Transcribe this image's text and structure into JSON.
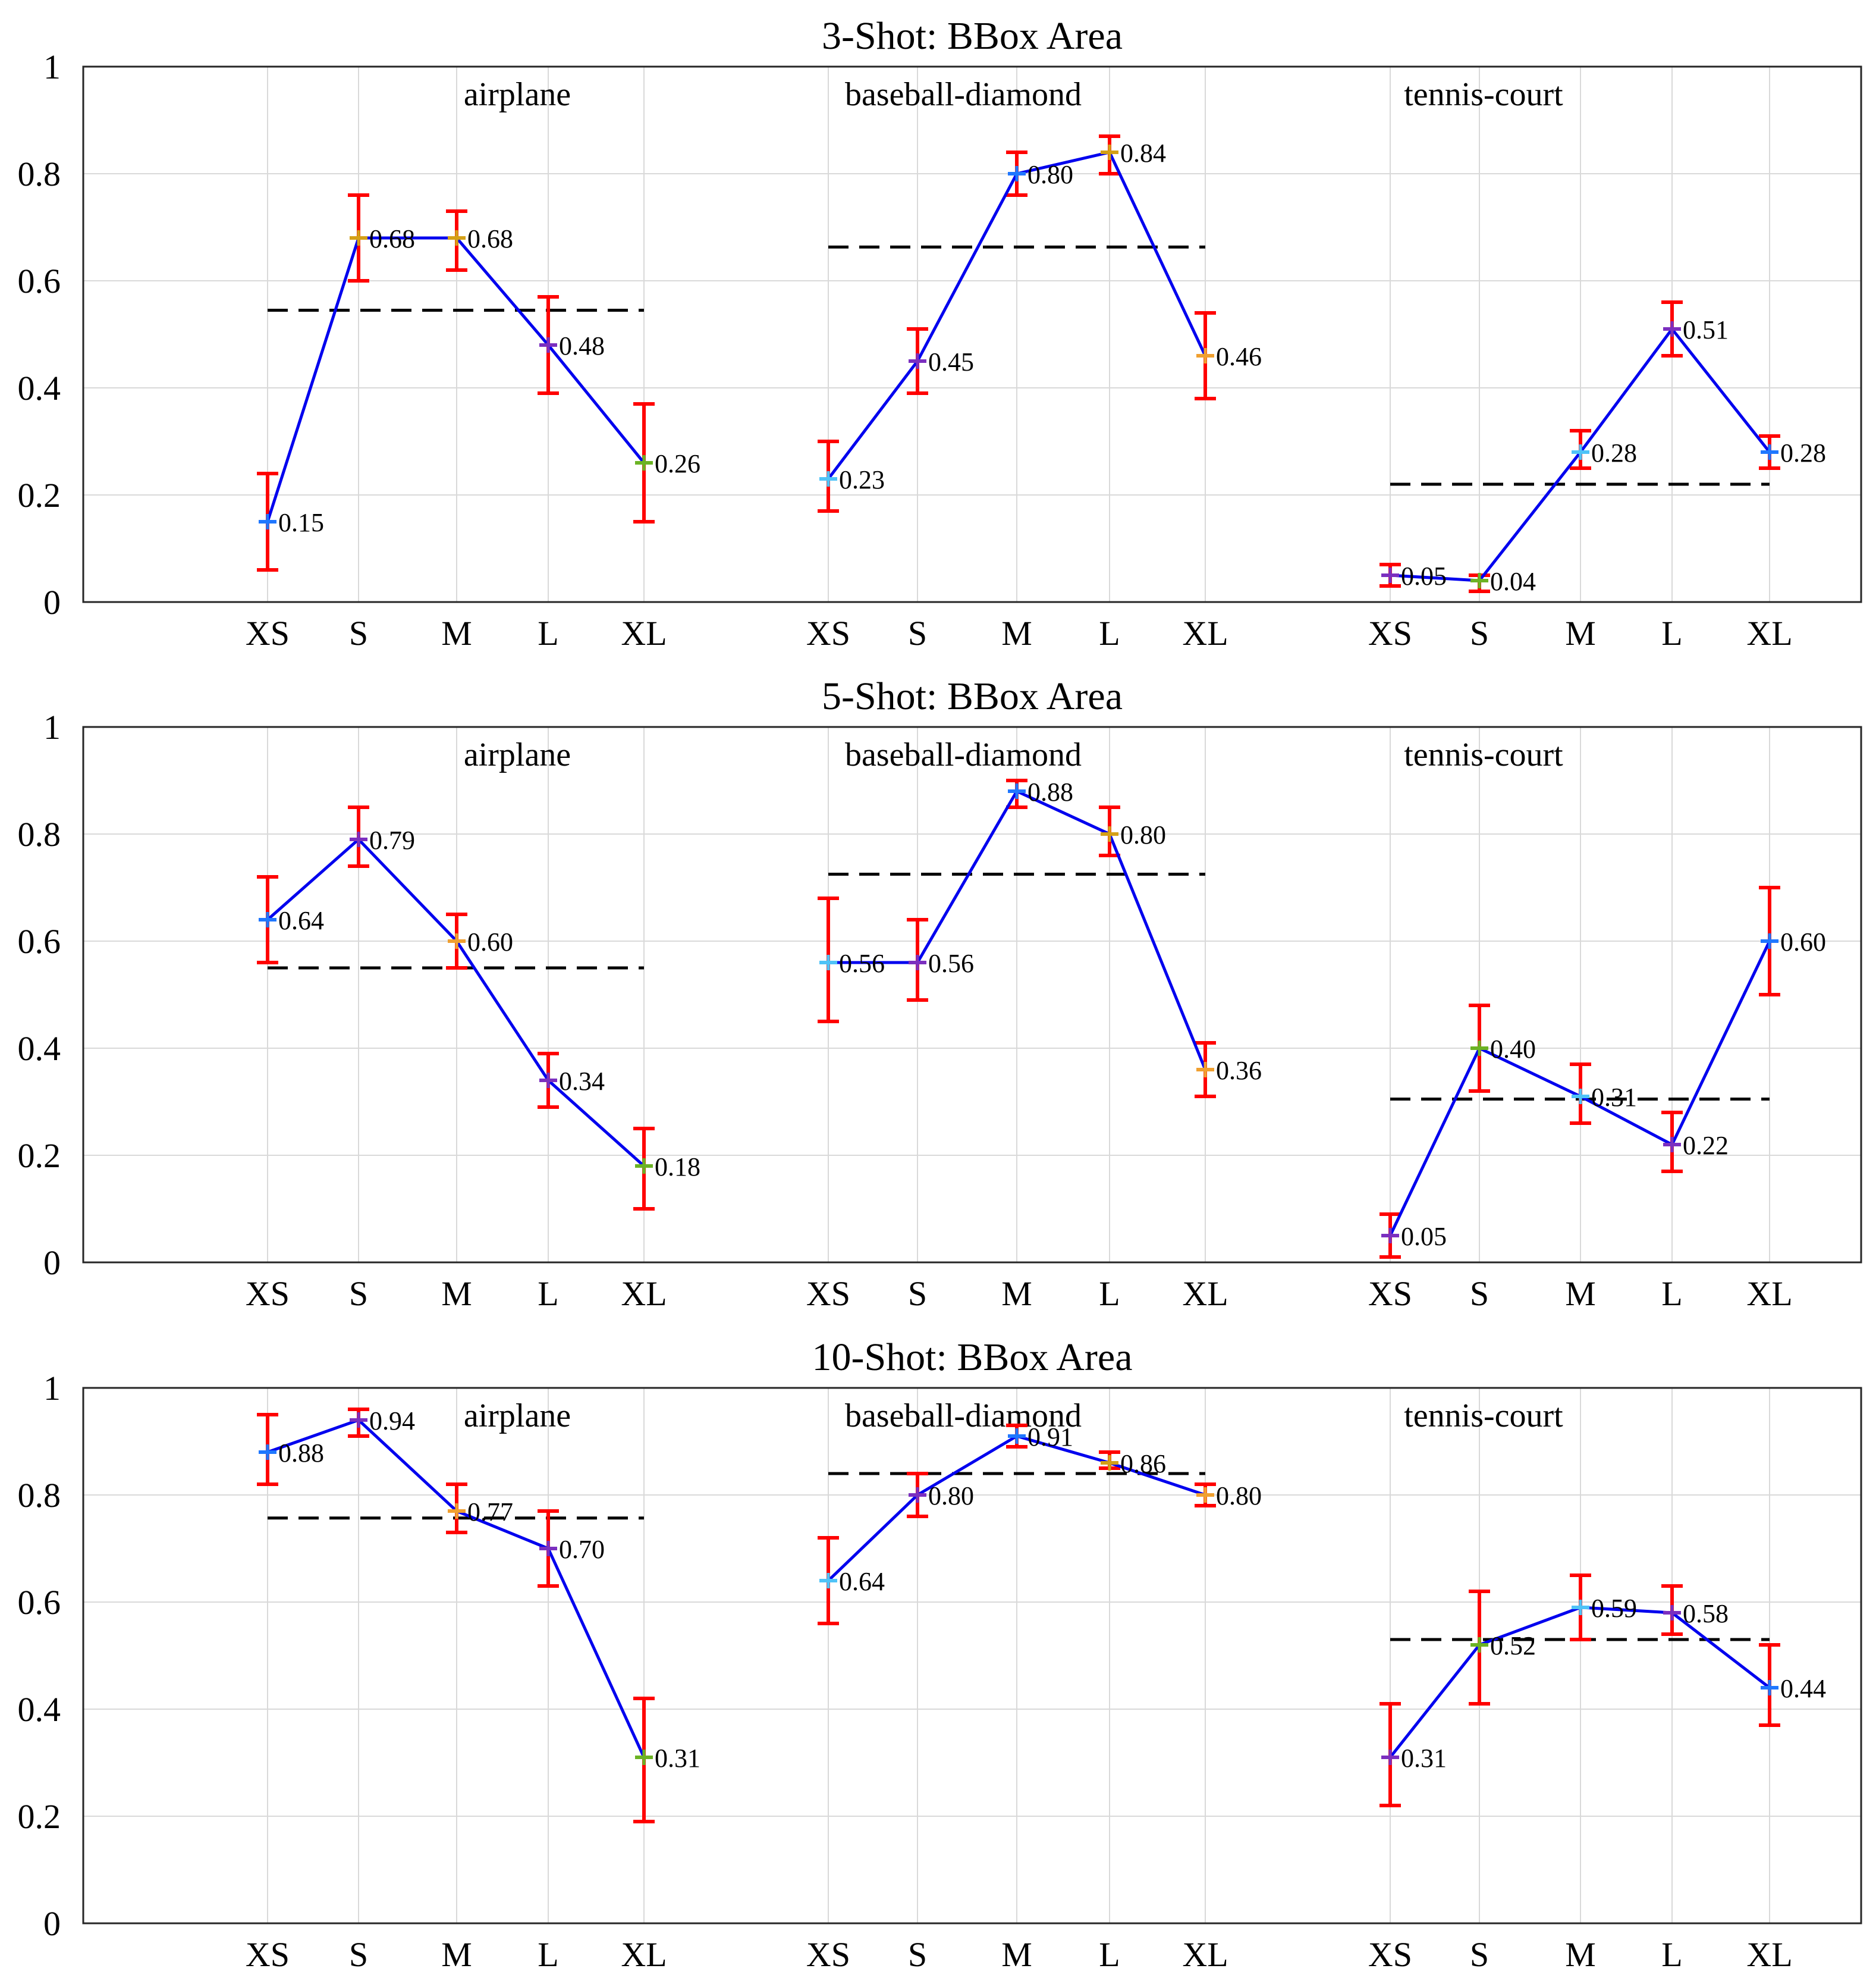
{
  "chart_data": [
    {
      "type": "line",
      "title": "3-Shot: BBox Area",
      "ylim": [
        0,
        1
      ],
      "yticks": [
        "0",
        "0.2",
        "0.4",
        "0.6",
        "0.8",
        "1"
      ],
      "categories": [
        "XS",
        "S",
        "M",
        "L",
        "XL"
      ],
      "groups": [
        {
          "name": "airplane",
          "values": [
            0.15,
            0.68,
            0.68,
            0.48,
            0.26
          ],
          "labels": [
            "0.15",
            "0.68",
            "0.68",
            "0.48",
            "0.26"
          ],
          "err_low": [
            0.06,
            0.6,
            0.62,
            0.39,
            0.15
          ],
          "err_high": [
            0.24,
            0.76,
            0.73,
            0.57,
            0.37
          ],
          "mean": 0.545,
          "marker_colors": [
            "#1f77ff",
            "#d4a017",
            "#d4a017",
            "#7b2fbf",
            "#6bb324"
          ]
        },
        {
          "name": "baseball-diamond",
          "values": [
            0.23,
            0.45,
            0.8,
            0.84,
            0.46
          ],
          "labels": [
            "0.23",
            "0.45",
            "0.80",
            "0.84",
            "0.46"
          ],
          "err_low": [
            0.17,
            0.39,
            0.76,
            0.8,
            0.38
          ],
          "err_high": [
            0.3,
            0.51,
            0.84,
            0.87,
            0.54
          ],
          "mean": 0.663,
          "marker_colors": [
            "#4fc3f7",
            "#7b2fbf",
            "#1f77ff",
            "#d4a017",
            "#f0a030"
          ]
        },
        {
          "name": "tennis-court",
          "values": [
            0.05,
            0.04,
            0.28,
            0.51,
            0.28
          ],
          "labels": [
            "0.05",
            "0.04",
            "0.28",
            "0.51",
            "0.28"
          ],
          "err_low": [
            0.03,
            0.02,
            0.25,
            0.46,
            0.25
          ],
          "err_high": [
            0.07,
            0.05,
            0.32,
            0.56,
            0.31
          ],
          "mean": 0.22,
          "marker_colors": [
            "#7b2fbf",
            "#6bb324",
            "#4fc3f7",
            "#7b2fbf",
            "#1f77ff"
          ]
        }
      ]
    },
    {
      "type": "line",
      "title": "5-Shot: BBox Area",
      "ylim": [
        0,
        1
      ],
      "yticks": [
        "0",
        "0.2",
        "0.4",
        "0.6",
        "0.8",
        "1"
      ],
      "categories": [
        "XS",
        "S",
        "M",
        "L",
        "XL"
      ],
      "groups": [
        {
          "name": "airplane",
          "values": [
            0.64,
            0.79,
            0.6,
            0.34,
            0.18
          ],
          "labels": [
            "0.64",
            "0.79",
            "0.60",
            "0.34",
            "0.18"
          ],
          "err_low": [
            0.56,
            0.74,
            0.55,
            0.29,
            0.1
          ],
          "err_high": [
            0.72,
            0.85,
            0.65,
            0.39,
            0.25
          ],
          "mean": 0.55,
          "marker_colors": [
            "#1f77ff",
            "#7b2fbf",
            "#f0a030",
            "#7b2fbf",
            "#6bb324"
          ]
        },
        {
          "name": "baseball-diamond",
          "values": [
            0.56,
            0.56,
            0.88,
            0.8,
            0.36
          ],
          "labels": [
            "0.56",
            "0.56",
            "0.88",
            "0.80",
            "0.36"
          ],
          "err_low": [
            0.45,
            0.49,
            0.85,
            0.76,
            0.31
          ],
          "err_high": [
            0.68,
            0.64,
            0.9,
            0.85,
            0.41
          ],
          "mean": 0.725,
          "marker_colors": [
            "#4fc3f7",
            "#7b2fbf",
            "#1f77ff",
            "#d4a017",
            "#f0a030"
          ]
        },
        {
          "name": "tennis-court",
          "values": [
            0.05,
            0.4,
            0.31,
            0.22,
            0.6
          ],
          "labels": [
            "0.05",
            "0.40",
            "0.31",
            "0.22",
            "0.60"
          ],
          "err_low": [
            0.01,
            0.32,
            0.26,
            0.17,
            0.5
          ],
          "err_high": [
            0.09,
            0.48,
            0.37,
            0.28,
            0.7
          ],
          "mean": 0.305,
          "marker_colors": [
            "#7b2fbf",
            "#6bb324",
            "#4fc3f7",
            "#7b2fbf",
            "#1f77ff"
          ]
        }
      ]
    },
    {
      "type": "line",
      "title": "10-Shot: BBox Area",
      "ylim": [
        0,
        1
      ],
      "yticks": [
        "0",
        "0.2",
        "0.4",
        "0.6",
        "0.8",
        "1"
      ],
      "categories": [
        "XS",
        "S",
        "M",
        "L",
        "XL"
      ],
      "groups": [
        {
          "name": "airplane",
          "values": [
            0.88,
            0.94,
            0.77,
            0.7,
            0.31
          ],
          "labels": [
            "0.88",
            "0.94",
            "0.77",
            "0.70",
            "0.31"
          ],
          "err_low": [
            0.82,
            0.91,
            0.73,
            0.63,
            0.19
          ],
          "err_high": [
            0.95,
            0.96,
            0.82,
            0.77,
            0.42
          ],
          "mean": 0.757,
          "marker_colors": [
            "#1f77ff",
            "#7b2fbf",
            "#f0a030",
            "#7b2fbf",
            "#6bb324"
          ]
        },
        {
          "name": "baseball-diamond",
          "values": [
            0.64,
            0.8,
            0.91,
            0.86,
            0.8
          ],
          "labels": [
            "0.64",
            "0.80",
            "0.91",
            "0.86",
            "0.80"
          ],
          "err_low": [
            0.56,
            0.76,
            0.89,
            0.85,
            0.78
          ],
          "err_high": [
            0.72,
            0.84,
            0.93,
            0.88,
            0.82
          ],
          "mean": 0.84,
          "marker_colors": [
            "#4fc3f7",
            "#7b2fbf",
            "#1f77ff",
            "#d4a017",
            "#f0a030"
          ]
        },
        {
          "name": "tennis-court",
          "values": [
            0.31,
            0.52,
            0.59,
            0.58,
            0.44
          ],
          "labels": [
            "0.31",
            "0.52",
            "0.59",
            "0.58",
            "0.44"
          ],
          "err_low": [
            0.22,
            0.41,
            0.53,
            0.54,
            0.37
          ],
          "err_high": [
            0.41,
            0.62,
            0.65,
            0.63,
            0.52
          ],
          "mean": 0.53,
          "marker_colors": [
            "#7b2fbf",
            "#6bb324",
            "#4fc3f7",
            "#7b2fbf",
            "#1f77ff"
          ]
        }
      ]
    }
  ]
}
